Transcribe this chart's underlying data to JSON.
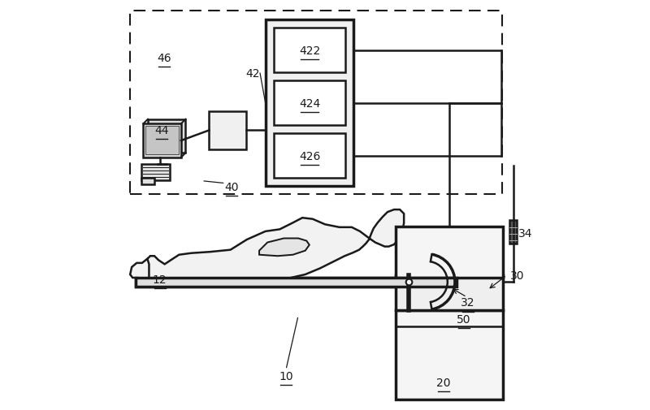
{
  "bg_color": "#ffffff",
  "line_color": "#1a1a1a",
  "line_width": 1.8,
  "thick_line": 2.5,
  "label_color": "#1a1a1a",
  "label_fontsize": 10
}
